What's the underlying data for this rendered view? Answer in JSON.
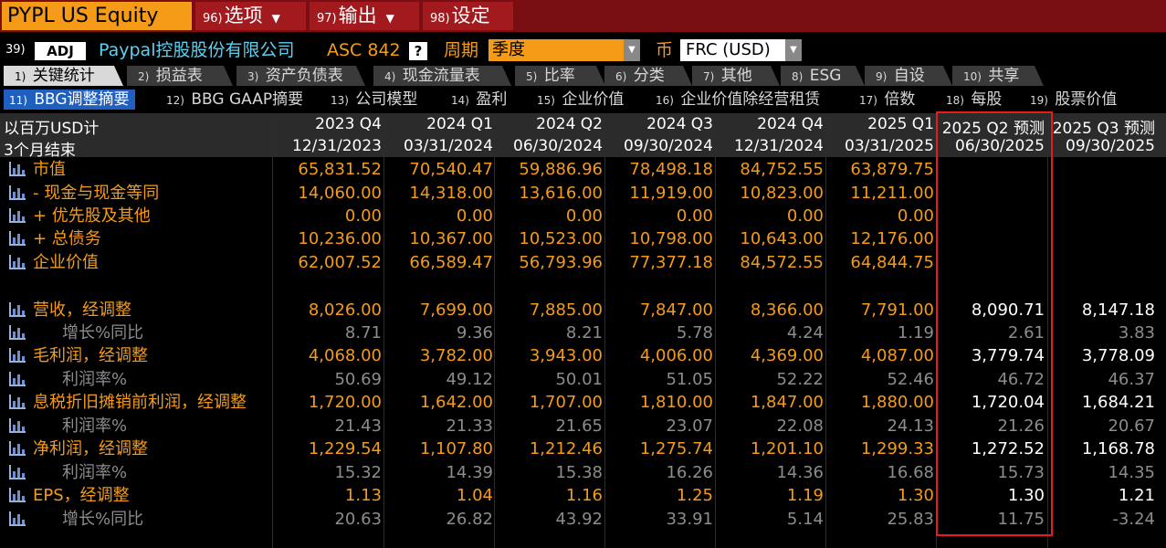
{
  "topbar": {
    "ticker": "PYPL US Equity",
    "menu1": {
      "num": "96)",
      "label": "选项"
    },
    "menu2": {
      "num": "97)",
      "label": "输出"
    },
    "menu3": {
      "num": "98)",
      "label": "设定"
    }
  },
  "security": {
    "num": "39)",
    "adj": "ADJ",
    "company": "Paypal控股股份有限公司",
    "accounting": "ASC 842",
    "help": "?",
    "period_label": "周期",
    "period_value": "季度",
    "currency_label": "币",
    "currency_value": "FRC (USD)"
  },
  "tabs_row1": [
    {
      "num": "1)",
      "label": "关键统计"
    },
    {
      "num": "2)",
      "label": "损益表"
    },
    {
      "num": "3)",
      "label": "资产负债表"
    },
    {
      "num": "4)",
      "label": "现金流量表"
    },
    {
      "num": "5)",
      "label": "比率"
    },
    {
      "num": "6)",
      "label": "分类"
    },
    {
      "num": "7)",
      "label": "其他"
    },
    {
      "num": "8)",
      "label": "ESG"
    },
    {
      "num": "9)",
      "label": "自设"
    },
    {
      "num": "10)",
      "label": "共享"
    }
  ],
  "tabs_row2": [
    {
      "num": "11)",
      "label": "BBG调整摘要"
    },
    {
      "num": "12)",
      "label": "BBG GAAP摘要"
    },
    {
      "num": "13)",
      "label": "公司模型"
    },
    {
      "num": "14)",
      "label": "盈利"
    },
    {
      "num": "15)",
      "label": "企业价值"
    },
    {
      "num": "16)",
      "label": "企业价值除经营租赁"
    },
    {
      "num": "17)",
      "label": "倍数"
    },
    {
      "num": "18)",
      "label": "每股"
    },
    {
      "num": "19)",
      "label": "股票价值"
    }
  ],
  "table": {
    "unit_label": "以百万USD计",
    "period_label": "3个月结束",
    "columns": [
      {
        "period": "2023 Q4",
        "date": "12/31/2023"
      },
      {
        "period": "2024 Q1",
        "date": "03/31/2024"
      },
      {
        "period": "2024 Q2",
        "date": "06/30/2024"
      },
      {
        "period": "2024 Q3",
        "date": "09/30/2024"
      },
      {
        "period": "2024 Q4",
        "date": "12/31/2024"
      },
      {
        "period": "2025 Q1",
        "date": "03/31/2025"
      },
      {
        "period": "2025 Q2 预测",
        "date": "06/30/2025"
      },
      {
        "period": "2025 Q3 预测",
        "date": "09/30/2025"
      }
    ],
    "rows": [
      {
        "label": "市值",
        "kind": "main",
        "values": [
          "65,831.52",
          "70,540.47",
          "59,886.96",
          "78,498.18",
          "84,752.55",
          "63,879.75",
          "",
          ""
        ]
      },
      {
        "label": "- 现金与现金等同",
        "kind": "main",
        "values": [
          "14,060.00",
          "14,318.00",
          "13,616.00",
          "11,919.00",
          "10,823.00",
          "11,211.00",
          "",
          ""
        ]
      },
      {
        "label": "+ 优先股及其他",
        "kind": "main",
        "values": [
          "0.00",
          "0.00",
          "0.00",
          "0.00",
          "0.00",
          "0.00",
          "",
          ""
        ]
      },
      {
        "label": "+ 总债务",
        "kind": "main",
        "values": [
          "10,236.00",
          "10,367.00",
          "10,523.00",
          "10,798.00",
          "10,643.00",
          "12,176.00",
          "",
          ""
        ]
      },
      {
        "label": "企业价值",
        "kind": "main",
        "values": [
          "62,007.52",
          "66,589.47",
          "56,793.96",
          "77,377.18",
          "84,572.55",
          "64,844.75",
          "",
          ""
        ]
      },
      {
        "label": "营收，经调整",
        "kind": "main",
        "values": [
          "8,026.00",
          "7,699.00",
          "7,885.00",
          "7,847.00",
          "8,366.00",
          "7,791.00",
          "8,090.71",
          "8,147.18"
        ]
      },
      {
        "label": "增长%同比",
        "kind": "sub",
        "values": [
          "8.71",
          "9.36",
          "8.21",
          "5.78",
          "4.24",
          "1.19",
          "2.61",
          "3.83"
        ]
      },
      {
        "label": "毛利润，经调整",
        "kind": "main",
        "values": [
          "4,068.00",
          "3,782.00",
          "3,943.00",
          "4,006.00",
          "4,369.00",
          "4,087.00",
          "3,779.74",
          "3,778.09"
        ]
      },
      {
        "label": "利润率%",
        "kind": "sub",
        "values": [
          "50.69",
          "49.12",
          "50.01",
          "51.05",
          "52.22",
          "52.46",
          "46.72",
          "46.37"
        ]
      },
      {
        "label": "息税折旧摊销前利润，经调整",
        "kind": "main",
        "values": [
          "1,720.00",
          "1,642.00",
          "1,707.00",
          "1,810.00",
          "1,847.00",
          "1,880.00",
          "1,720.04",
          "1,684.21"
        ]
      },
      {
        "label": "利润率%",
        "kind": "sub",
        "values": [
          "21.43",
          "21.33",
          "21.65",
          "23.07",
          "22.08",
          "24.13",
          "21.26",
          "20.67"
        ]
      },
      {
        "label": "净利润，经调整",
        "kind": "main",
        "values": [
          "1,229.54",
          "1,107.80",
          "1,212.46",
          "1,275.74",
          "1,201.10",
          "1,299.33",
          "1,272.52",
          "1,168.78"
        ]
      },
      {
        "label": "利润率%",
        "kind": "sub",
        "values": [
          "15.32",
          "14.39",
          "15.38",
          "16.26",
          "14.36",
          "16.68",
          "15.73",
          "14.35"
        ]
      },
      {
        "label": "EPS，经调整",
        "kind": "main",
        "values": [
          "1.13",
          "1.04",
          "1.16",
          "1.25",
          "1.19",
          "1.30",
          "1.30",
          "1.21"
        ]
      },
      {
        "label": "增长%同比",
        "kind": "sub",
        "values": [
          "20.63",
          "26.82",
          "43.92",
          "33.91",
          "5.14",
          "25.83",
          "11.75",
          "-3.24"
        ]
      }
    ]
  },
  "colors": {
    "accent_orange": "#f59b18",
    "title_bar": "#7a0f13",
    "highlight_box": "#e8191f",
    "active_tab_blue": "#1e5fbf",
    "company_cyan": "#5fd0f0"
  }
}
